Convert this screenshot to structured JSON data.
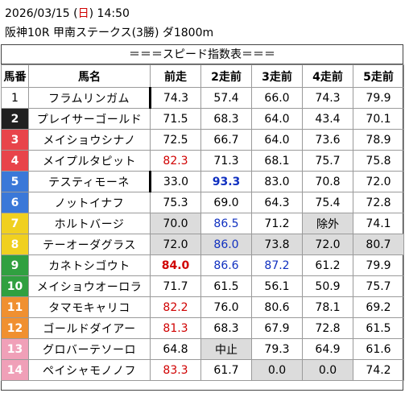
{
  "header": {
    "date": "2026/03/15",
    "weekday_open": " (",
    "weekday": "日",
    "weekday_close": ") ",
    "time": "14:50",
    "race": "阪神10R 甲南ステークス(3勝) ダ1800m"
  },
  "table_title": "＝＝＝スピード指数表＝＝＝",
  "columns": [
    "馬番",
    "馬名",
    "前走",
    "2走前",
    "3走前",
    "4走前",
    "5走前"
  ],
  "colors": {
    "frame1": "#ffffff",
    "frame2": "#202020",
    "frame3": "#e8444a",
    "frame4": "#3a78d8",
    "frame5": "#f0d020",
    "frame6": "#30a040",
    "frame7": "#f09030",
    "frame8": "#f0a0b8",
    "red": "#d00000",
    "blue": "#1030c0",
    "gray_cell": "#dcdcdc"
  },
  "rows": [
    {
      "num": "1",
      "name": "フラムリンガム",
      "v": [
        "74.3",
        "57.4",
        "66.0",
        "74.3",
        "79.9"
      ]
    },
    {
      "num": "2",
      "name": "プレイサーゴールド",
      "v": [
        "71.5",
        "68.3",
        "64.0",
        "43.4",
        "70.1"
      ]
    },
    {
      "num": "3",
      "name": "メイショウシナノ",
      "v": [
        "72.5",
        "66.7",
        "64.0",
        "73.6",
        "78.9"
      ]
    },
    {
      "num": "4",
      "name": "メイプルタピット",
      "v": [
        "82.3",
        "71.3",
        "68.1",
        "75.7",
        "75.8"
      ]
    },
    {
      "num": "5",
      "name": "テスティモーネ",
      "v": [
        "33.0",
        "93.3",
        "83.0",
        "70.8",
        "72.0"
      ]
    },
    {
      "num": "6",
      "name": "ノットイナフ",
      "v": [
        "75.3",
        "69.0",
        "64.3",
        "75.4",
        "72.8"
      ]
    },
    {
      "num": "7",
      "name": "ホルトバージ",
      "v": [
        "70.0",
        "86.5",
        "71.2",
        "除外",
        "74.1"
      ]
    },
    {
      "num": "8",
      "name": "テーオーダグラス",
      "v": [
        "72.0",
        "86.0",
        "73.8",
        "72.0",
        "80.7"
      ]
    },
    {
      "num": "9",
      "name": "カネトシゴウト",
      "v": [
        "84.0",
        "86.6",
        "87.2",
        "61.2",
        "79.9"
      ]
    },
    {
      "num": "10",
      "name": "メイショウオーロラ",
      "v": [
        "71.7",
        "61.5",
        "56.1",
        "50.9",
        "75.7"
      ]
    },
    {
      "num": "11",
      "name": "タマモキャリコ",
      "v": [
        "82.2",
        "76.0",
        "80.6",
        "78.1",
        "69.2"
      ]
    },
    {
      "num": "12",
      "name": "ゴールドダイアー",
      "v": [
        "81.3",
        "68.3",
        "67.9",
        "72.8",
        "61.5"
      ]
    },
    {
      "num": "13",
      "name": "グロバーテソーロ",
      "v": [
        "64.8",
        "中止",
        "79.3",
        "64.9",
        "61.6"
      ]
    },
    {
      "num": "14",
      "name": "ペイシャモノノフ",
      "v": [
        "83.3",
        "61.7",
        "0.0",
        "0.0",
        "74.2"
      ]
    }
  ]
}
